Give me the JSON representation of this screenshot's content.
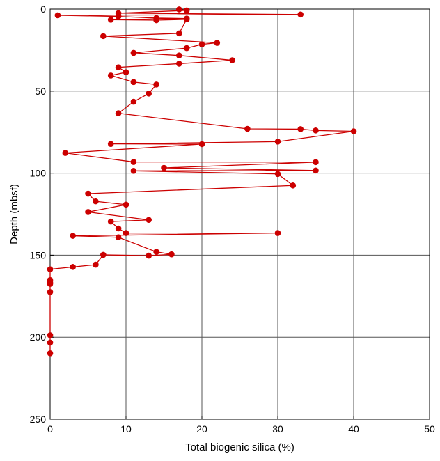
{
  "chart_data": {
    "type": "line",
    "xlabel": "Total biogenic silica (%)",
    "ylabel": "Depth (mbsf)",
    "xlim": [
      0,
      50
    ],
    "ylim": [
      0,
      250
    ],
    "y_inverted": true,
    "grid": true,
    "x_ticks": [
      "0",
      "10",
      "20",
      "30",
      "40",
      "50"
    ],
    "y_ticks": [
      "0",
      "50",
      "100",
      "150",
      "200",
      "250"
    ],
    "series": [
      {
        "color": "#cc0000",
        "points": [
          [
            17,
            0.2
          ],
          [
            18,
            0.8
          ],
          [
            9,
            2.5
          ],
          [
            33,
            3.3
          ],
          [
            1,
            3.8
          ],
          [
            9,
            4.5
          ],
          [
            14,
            5.5
          ],
          [
            18,
            5.8
          ],
          [
            8,
            6.5
          ],
          [
            14,
            6.8
          ],
          [
            18,
            6.3
          ],
          [
            17,
            14.8
          ],
          [
            7,
            16.5
          ],
          [
            22,
            20.6
          ],
          [
            20,
            21.5
          ],
          [
            18,
            23.8
          ],
          [
            11,
            26.7
          ],
          [
            17,
            28.3
          ],
          [
            24,
            31.2
          ],
          [
            17,
            33.3
          ],
          [
            9,
            35.5
          ],
          [
            10,
            38.5
          ],
          [
            8,
            40.5
          ],
          [
            11,
            44.5
          ],
          [
            14,
            46.0
          ],
          [
            13,
            51.5
          ],
          [
            11,
            56.5
          ],
          [
            9,
            63.5
          ],
          [
            26,
            73.0
          ],
          [
            33,
            73.2
          ],
          [
            35,
            74.0
          ],
          [
            40,
            74.5
          ],
          [
            30,
            80.8
          ],
          [
            8,
            82.2
          ],
          [
            20,
            82.3
          ],
          [
            2,
            87.7
          ],
          [
            11,
            93.2
          ],
          [
            35,
            93.3
          ],
          [
            15,
            96.8
          ],
          [
            35,
            98.4
          ],
          [
            11,
            98.6
          ],
          [
            30,
            100.5
          ],
          [
            32,
            107.5
          ],
          [
            5,
            112.5
          ],
          [
            6,
            117.2
          ],
          [
            10,
            119.2
          ],
          [
            5,
            123.7
          ],
          [
            13,
            128.5
          ],
          [
            8,
            129.5
          ],
          [
            9,
            133.7
          ],
          [
            10,
            136.5
          ],
          [
            30,
            136.5
          ],
          [
            3,
            138.2
          ],
          [
            9,
            139.1
          ],
          [
            14,
            148.0
          ],
          [
            16,
            149.5
          ],
          [
            13,
            150.3
          ],
          [
            7,
            149.8
          ],
          [
            6,
            155.8
          ],
          [
            3,
            157.2
          ],
          [
            0,
            158.6
          ],
          [
            0,
            165.2
          ],
          [
            0,
            166.5
          ],
          [
            0,
            167.5
          ],
          [
            0,
            172.5
          ],
          [
            0,
            198.8
          ],
          [
            0,
            203.3
          ],
          [
            0,
            209.8
          ]
        ]
      }
    ]
  }
}
